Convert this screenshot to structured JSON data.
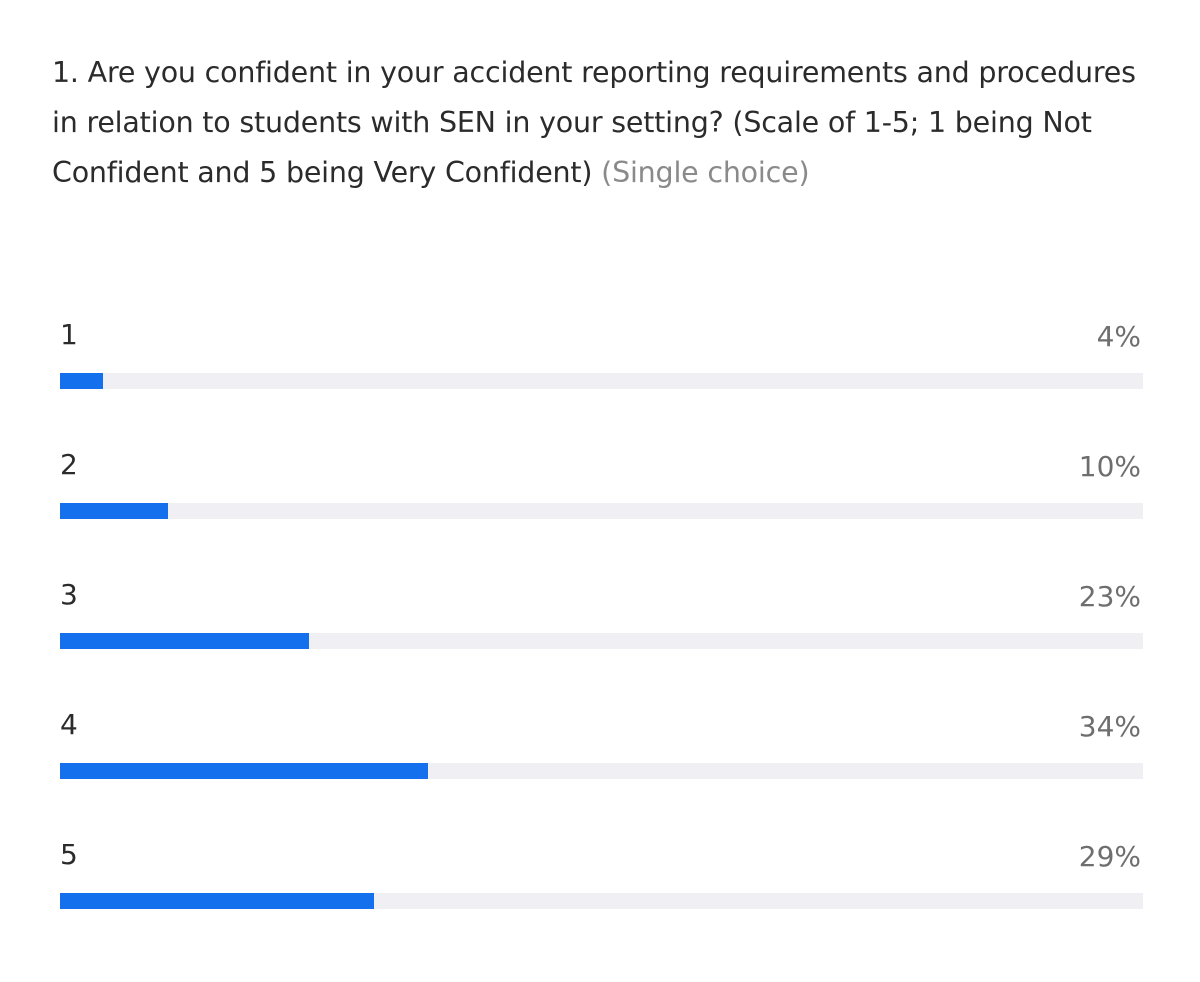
{
  "chart_data": {
    "type": "bar",
    "orientation": "horizontal",
    "title": "1. Are you confident in your accident reporting requirements and procedures in relation to students with SEN in your setting? (Scale of 1-5; 1 being Not Confident and 5 being Very Confident)",
    "question_type": "(Single choice)",
    "categories": [
      "1",
      "2",
      "3",
      "4",
      "5"
    ],
    "values": [
      4,
      10,
      23,
      34,
      29
    ],
    "value_labels": [
      "4%",
      "10%",
      "23%",
      "34%",
      "29%"
    ],
    "xlim": [
      0,
      100
    ],
    "colors": {
      "bar": "#1470ec",
      "track": "#efeff4"
    }
  }
}
